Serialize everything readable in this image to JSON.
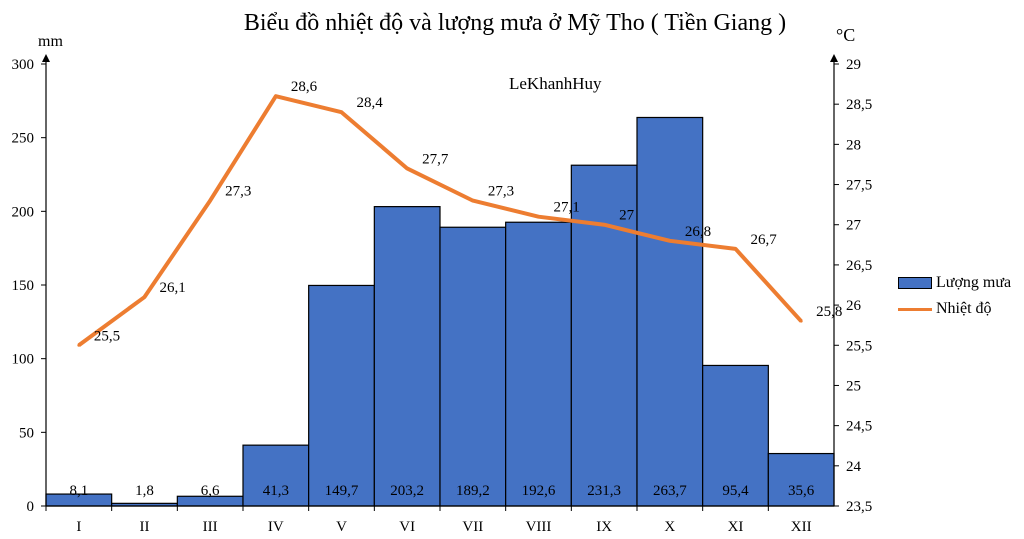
{
  "chart_data": {
    "type": "bar+line",
    "title": "Biểu đồ nhiệt độ và lượng mưa ở Mỹ Tho ( Tiền Giang )",
    "watermark": "LeKhanhHuy",
    "categories": [
      "I",
      "II",
      "III",
      "IV",
      "V",
      "VI",
      "VII",
      "VIII",
      "IX",
      "X",
      "XI",
      "XII"
    ],
    "series": [
      {
        "name": "Lượng mưa",
        "type": "bar",
        "axis": "left",
        "color": "#4472c4",
        "values": [
          8.1,
          1.8,
          6.6,
          41.3,
          149.7,
          203.2,
          189.2,
          192.6,
          231.3,
          263.7,
          95.4,
          35.6
        ],
        "labels": [
          "8,1",
          "1,8",
          "6,6",
          "41,3",
          "149,7",
          "203,2",
          "189,2",
          "192,6",
          "231,3",
          "263,7",
          "95,4",
          "35,6"
        ]
      },
      {
        "name": "Nhiệt độ",
        "type": "line",
        "axis": "right",
        "color": "#ed7d31",
        "values": [
          25.5,
          26.1,
          27.3,
          28.6,
          28.4,
          27.7,
          27.3,
          27.1,
          27.0,
          26.8,
          26.7,
          25.8
        ],
        "labels": [
          "25,5",
          "26,1",
          "27,3",
          "28,6",
          "28,4",
          "27,7",
          "27,3",
          "27,1",
          "27",
          "26,8",
          "26,7",
          "25,8"
        ]
      }
    ],
    "y_left": {
      "unit": "mm",
      "ylim": [
        0,
        300
      ],
      "ticks": [
        "0",
        "50",
        "100",
        "150",
        "200",
        "250",
        "300"
      ]
    },
    "y_right": {
      "unit": "°C",
      "ylim": [
        23.5,
        29
      ],
      "ticks": [
        "23,5",
        "24",
        "24,5",
        "25",
        "25,5",
        "26",
        "26,5",
        "27",
        "27,5",
        "28",
        "28,5",
        "29"
      ]
    },
    "grid": false,
    "legend_position": "right"
  }
}
